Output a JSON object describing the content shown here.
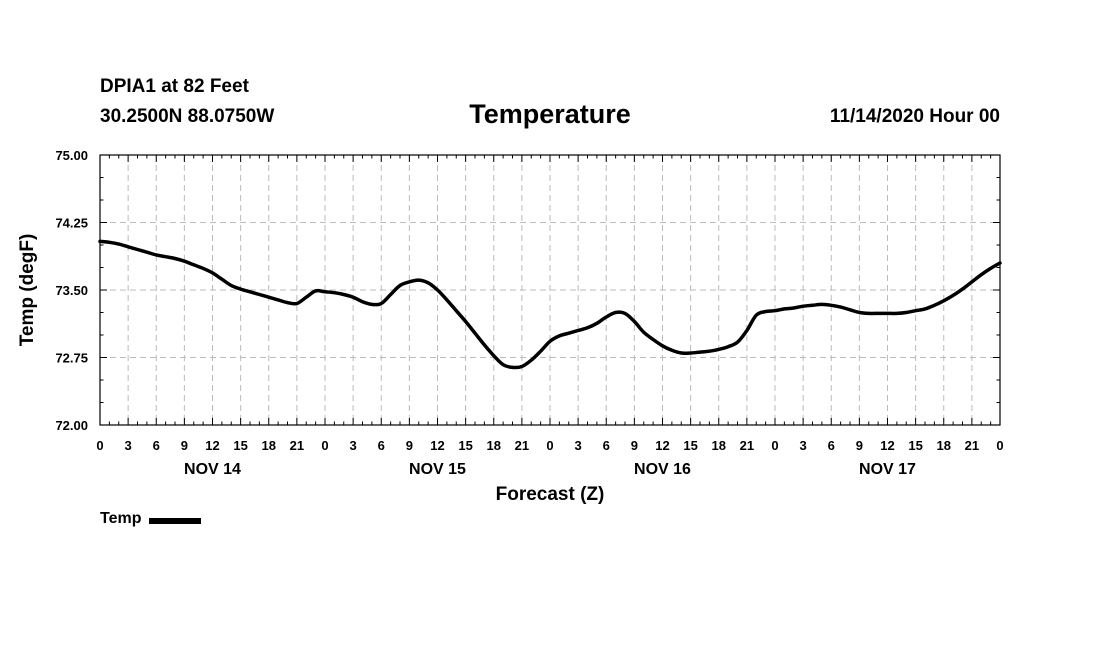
{
  "header": {
    "station": "DPIA1 at 82 Feet",
    "coords": "30.2500N 88.0750W",
    "title": "Temperature",
    "run": "11/14/2020 Hour 00"
  },
  "legend": {
    "label": "Temp"
  },
  "chart_data": {
    "type": "line",
    "title": "Temperature",
    "xlabel": "Forecast (Z)",
    "ylabel": "Temp (degF)",
    "x_unit": "forecast hour",
    "xlim": [
      0,
      96
    ],
    "ylim": [
      72.0,
      75.0
    ],
    "yticks": [
      "72.00",
      "72.75",
      "73.50",
      "74.25",
      "75.00"
    ],
    "xtick_labels": [
      "0",
      "3",
      "6",
      "9",
      "12",
      "15",
      "18",
      "21",
      "0",
      "3",
      "6",
      "9",
      "12",
      "15",
      "18",
      "21",
      "0",
      "3",
      "6",
      "9",
      "12",
      "15",
      "18",
      "21",
      "0",
      "3",
      "6",
      "9",
      "12",
      "15",
      "18",
      "21",
      "0"
    ],
    "day_labels": [
      "NOV 14",
      "NOV 15",
      "NOV 16",
      "NOV 17"
    ],
    "grid": true,
    "legend_position": "bottom-left",
    "series": [
      {
        "name": "Temp",
        "color": "#000000",
        "x": [
          0,
          1,
          2,
          3,
          4,
          5,
          6,
          7,
          8,
          9,
          10,
          11,
          12,
          13,
          14,
          15,
          16,
          17,
          18,
          19,
          20,
          21,
          22,
          23,
          24,
          25,
          26,
          27,
          28,
          29,
          30,
          31,
          32,
          33,
          34,
          35,
          36,
          37,
          38,
          39,
          40,
          41,
          42,
          43,
          44,
          45,
          46,
          47,
          48,
          49,
          50,
          51,
          52,
          53,
          54,
          55,
          56,
          57,
          58,
          59,
          60,
          61,
          62,
          63,
          64,
          65,
          66,
          67,
          68,
          69,
          70,
          71,
          72,
          73,
          74,
          75,
          76,
          77,
          78,
          79,
          80,
          81,
          82,
          83,
          84,
          85,
          86,
          87,
          88,
          89,
          90,
          91,
          92,
          93,
          94,
          95,
          96
        ],
        "values": [
          74.04,
          74.03,
          74.01,
          73.98,
          73.95,
          73.92,
          73.89,
          73.87,
          73.85,
          73.82,
          73.78,
          73.74,
          73.69,
          73.62,
          73.55,
          73.51,
          73.48,
          73.45,
          73.42,
          73.39,
          73.36,
          73.35,
          73.42,
          73.49,
          73.48,
          73.47,
          73.45,
          73.42,
          73.37,
          73.34,
          73.35,
          73.45,
          73.55,
          73.59,
          73.61,
          73.58,
          73.5,
          73.39,
          73.27,
          73.15,
          73.02,
          72.89,
          72.77,
          72.67,
          72.64,
          72.65,
          72.72,
          72.82,
          72.93,
          72.99,
          73.02,
          73.05,
          73.08,
          73.13,
          73.2,
          73.25,
          73.24,
          73.15,
          73.03,
          72.95,
          72.88,
          72.83,
          72.8,
          72.8,
          72.81,
          72.82,
          72.84,
          72.87,
          72.92,
          73.05,
          73.22,
          73.26,
          73.27,
          73.29,
          73.3,
          73.32,
          73.33,
          73.34,
          73.33,
          73.31,
          73.28,
          73.25,
          73.24,
          73.24,
          73.24,
          73.24,
          73.25,
          73.27,
          73.29,
          73.33,
          73.38,
          73.44,
          73.51,
          73.59,
          73.67,
          73.74,
          73.8
        ]
      }
    ]
  }
}
